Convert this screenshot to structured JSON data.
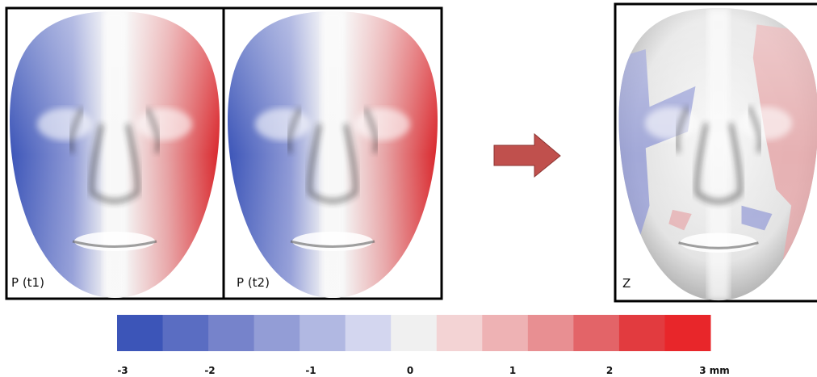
{
  "panels": [
    {
      "label": "P (t1)"
    },
    {
      "label": "P (t2)"
    },
    {
      "label": "Z"
    }
  ],
  "colorbar": {
    "ticks": [
      "-3",
      "-2",
      "-1",
      "0",
      "1",
      "2",
      "3 mm"
    ]
  }
}
